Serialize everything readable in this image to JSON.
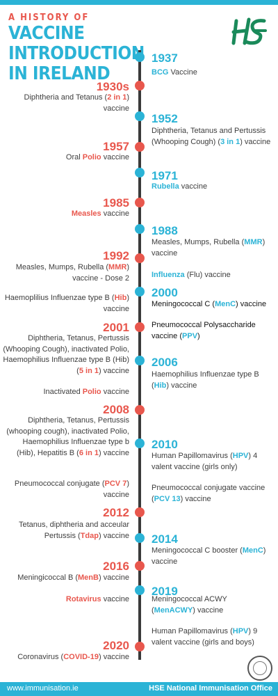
{
  "header": {
    "title_small": "A HISTORY OF",
    "title_lines": [
      "VACCINE",
      "INTRODUCTION",
      "IN IRELAND"
    ],
    "logo_icon": "hse-logo-icon"
  },
  "colors": {
    "accent_blue": "#2bb3d6",
    "accent_red": "#e8574d",
    "line": "#3a3a3a"
  },
  "events": {
    "e1937": {
      "year": "1937",
      "hl": "BCG",
      "text": " Vaccine"
    },
    "e1930s": {
      "year": "1930s",
      "pre": "Diphtheria and Tetanus (",
      "hl": "2 in 1",
      "post": ") vaccine"
    },
    "e1952": {
      "year": "1952",
      "pre": "Diphtheria, Tetanus and Pertussis (Whooping Cough) (",
      "hl": "3 in 1",
      "post": ") vaccine"
    },
    "e1957": {
      "year": "1957",
      "pre": "Oral ",
      "hl": "Polio",
      "post": " vaccine"
    },
    "e1971": {
      "year": "1971",
      "hl": "Rubella",
      "post": " vaccine"
    },
    "e1985": {
      "year": "1985",
      "hl": "Measles",
      "post": " vaccine"
    },
    "e1988": {
      "year": "1988",
      "pre": "Measles, Mumps, Rubella (",
      "hl": "MMR",
      "post": ") vaccine",
      "extra_hl": "Influenza",
      "extra_post": " (Flu) vaccine"
    },
    "e1992": {
      "year": "1992",
      "pre": "Measles, Mumps, Rubella (",
      "hl": "MMR",
      "post": ") vaccine - Dose 2"
    },
    "e2000l": {
      "pre": "Haemoplilius Influenzae type B (",
      "hl": "Hib",
      "post": ") vaccine"
    },
    "e2000": {
      "year": "2000",
      "pre": "Meningococcal C (",
      "hl": "MenC",
      "post": ") vaccine"
    },
    "e2001": {
      "year": "2001",
      "pre": "Diphtheria, Tetanus, Pertussis (Whooping Cough), inactivated Polio, Haemophilius Influenzae type B (Hib) (",
      "hl": "5 in 1",
      "post": ") vaccine"
    },
    "e2001r": {
      "pre": "Pneumococcal Polysaccharide vaccine (",
      "hl": "PPV",
      "post": ")"
    },
    "e2006": {
      "year": "2006",
      "pre": "Haemophilius Influenzae type B (",
      "hl": "Hib",
      "post": ") vaccine"
    },
    "e2006l": {
      "pre": "Inactivated ",
      "hl": "Polio",
      "post": " vaccine"
    },
    "e2008": {
      "year": "2008",
      "pre": "Diphtheria, Tetanus, Pertussis (whooping cough), inactivated Polio, Haemophilius Influenzae type b (Hib), Hepatitis B (",
      "hl": "6 in 1",
      "post": ") vaccine"
    },
    "e2010": {
      "year": "2010",
      "pre": "Human Papillomavirus (",
      "hl": "HPV",
      "post": ") 4 valent vaccine (girls only)"
    },
    "e2010l": {
      "pre": "Pneumococcal conjugate (",
      "hl": "PCV 7",
      "post": ") vaccine"
    },
    "e2010r": {
      "pre": "Pneumococcal conjugate vaccine (",
      "hl": "PCV 13",
      "post": ") vaccine"
    },
    "e2012": {
      "year": "2012",
      "pre": "Tetanus, diphtheria and acceular Pertussis (",
      "hl": "Tdap",
      "post": ") vaccine"
    },
    "e2014": {
      "year": "2014",
      "pre": "Meningococcal C booster (",
      "hl": "MenC",
      "post": ") vaccine"
    },
    "e2016": {
      "year": "2016",
      "pre": "Meningicoccal B (",
      "hl": "MenB",
      "post": ") vaccine"
    },
    "e2019": {
      "year": "2019",
      "pre": "Meningococcal ACWY (",
      "hl": "MenACWY",
      "post": ") vaccine"
    },
    "e2019l": {
      "hl": "Rotavirus",
      "post": " vaccine"
    },
    "e2019r": {
      "pre": "Human Papillomavirus (",
      "hl": "HPV",
      "post": ") 9 valent vaccine (girls and boys)"
    },
    "e2020": {
      "year": "2020",
      "pre": "Coronavirus (",
      "hl": "COVID-19",
      "post": ") vaccine"
    }
  },
  "footer": {
    "site": "www.immunisation.ie",
    "org": "HSE National Immunisation Office"
  },
  "badge_icon": "protect-prevent-immunise-badge-icon"
}
